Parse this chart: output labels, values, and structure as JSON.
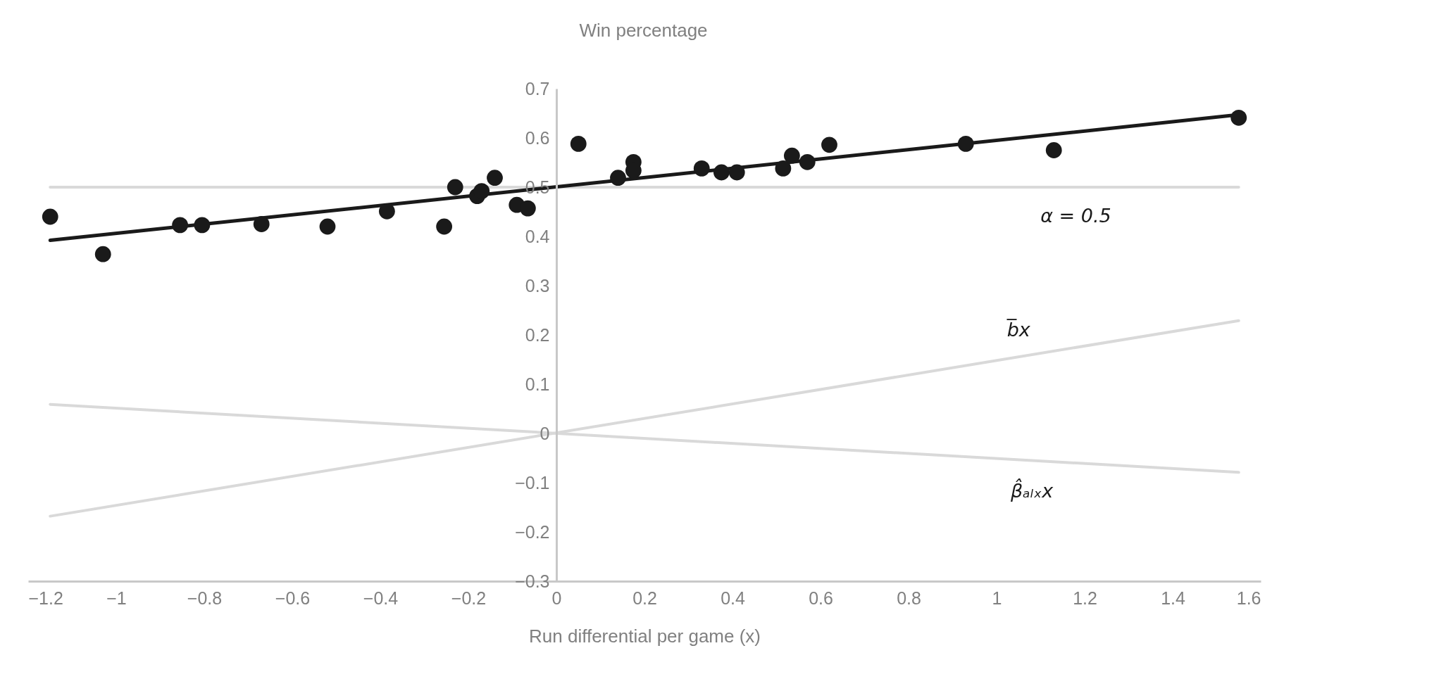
{
  "chart_data": {
    "type": "scatter",
    "ylabel": "Win percentage",
    "xlabel": "Run differential per game (x)",
    "xlim": [
      -1.2,
      1.6
    ],
    "xticks": [
      -1.2,
      -1,
      -0.8,
      -0.6,
      -0.4,
      -0.2,
      0,
      0.2,
      0.4,
      0.6,
      0.8,
      1,
      1.2,
      1.4,
      1.6
    ],
    "ylim": [
      -0.3,
      0.7
    ],
    "yticks": [
      -0.3,
      -0.2,
      -0.1,
      0,
      0.1,
      0.2,
      0.3,
      0.4,
      0.5,
      0.6,
      0.7
    ],
    "grid": false,
    "series": [
      {
        "type": "line",
        "color": "#d9d9d9",
        "x": [
          -1.15,
          1.55
        ],
        "values": [
          0.5,
          0.5
        ]
      },
      {
        "type": "line",
        "color": "#d9d9d9",
        "x": [
          -1.15,
          1.55
        ],
        "values": [
          -0.168,
          0.229
        ]
      },
      {
        "type": "line",
        "color": "#d9d9d9",
        "x": [
          -1.15,
          1.55
        ],
        "values": [
          0.059,
          -0.079
        ]
      },
      {
        "type": "line",
        "color": "#1a1a1a",
        "x": [
          -1.15,
          1.55
        ],
        "values": [
          0.392,
          0.647
        ]
      },
      {
        "marker": "circle",
        "color": "#1a1a1a",
        "x": [
          -1.15,
          -1.03,
          -0.855,
          -0.805,
          -0.67,
          -0.52,
          -0.385,
          -0.255,
          -0.23,
          -0.18,
          -0.17,
          -0.14,
          -0.09,
          -0.065,
          0.05,
          0.14,
          0.175,
          0.175,
          0.33,
          0.375,
          0.41,
          0.515,
          0.535,
          0.57,
          0.62,
          0.93,
          1.13,
          1.55
        ],
        "values": [
          0.44,
          0.364,
          0.423,
          0.423,
          0.425,
          0.42,
          0.451,
          0.42,
          0.5,
          0.482,
          0.492,
          0.519,
          0.464,
          0.457,
          0.588,
          0.519,
          0.551,
          0.534,
          0.538,
          0.53,
          0.53,
          0.538,
          0.564,
          0.551,
          0.586,
          0.588,
          0.575,
          0.641
        ]
      }
    ],
    "annotations": [
      {
        "text": "α = 0.5",
        "x": 1.18,
        "y": 0.5
      },
      {
        "text": "b̅x",
        "x": 1.05,
        "y": 0.155
      },
      {
        "text": "β̂ₐₗₓx",
        "x": 1.08,
        "y": -0.055
      }
    ]
  }
}
